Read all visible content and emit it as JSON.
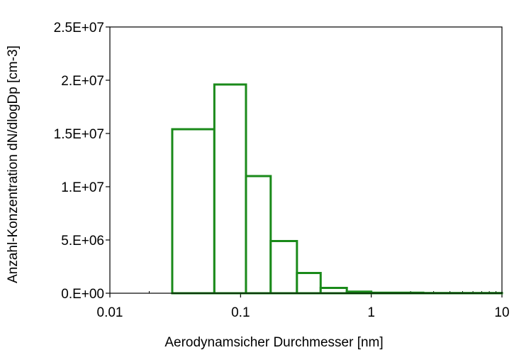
{
  "chart_data": {
    "type": "histogram",
    "x_scale": "log",
    "xlim": [
      0.01,
      10
    ],
    "ylim": [
      0,
      25000000
    ],
    "xlabel": "Aerodynamsicher Durchmesser [nm]",
    "ylabel": "Anzahl-Konzentration dN/dlogDp [cm-3]",
    "x_ticks": [
      {
        "value": 0.01,
        "label": "0.01"
      },
      {
        "value": 0.1,
        "label": "0.1"
      },
      {
        "value": 1,
        "label": "1"
      },
      {
        "value": 10,
        "label": "10"
      }
    ],
    "y_ticks": [
      {
        "value": 0,
        "label": "0.E+00"
      },
      {
        "value": 5000000,
        "label": "5.E+06"
      },
      {
        "value": 10000000,
        "label": "1.E+07"
      },
      {
        "value": 15000000,
        "label": "1.5E+07"
      },
      {
        "value": 20000000,
        "label": "2.E+07"
      },
      {
        "value": 25000000,
        "label": "2.5E+07"
      }
    ],
    "bins": [
      {
        "x0": 0.03,
        "x1": 0.063,
        "value": 15400000
      },
      {
        "x0": 0.063,
        "x1": 0.11,
        "value": 19600000
      },
      {
        "x0": 0.11,
        "x1": 0.17,
        "value": 11000000
      },
      {
        "x0": 0.17,
        "x1": 0.27,
        "value": 4900000
      },
      {
        "x0": 0.27,
        "x1": 0.41,
        "value": 1900000
      },
      {
        "x0": 0.41,
        "x1": 0.65,
        "value": 500000
      },
      {
        "x0": 0.65,
        "x1": 1.0,
        "value": 150000
      },
      {
        "x0": 1.0,
        "x1": 2.5,
        "value": 50000
      },
      {
        "x0": 2.5,
        "x1": 10,
        "value": 20000
      }
    ],
    "line_color": "#1a8a1a",
    "grid": false,
    "legend": false
  }
}
